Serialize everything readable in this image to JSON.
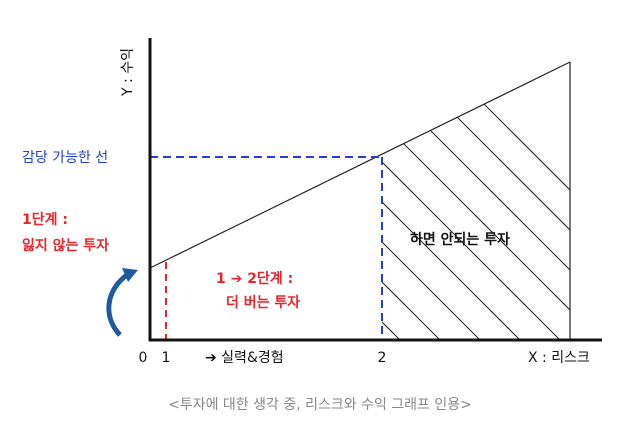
{
  "axes": {
    "y_label": "Y : 수익",
    "x_label": "X : 리스크",
    "origin": "0",
    "mark_1": "1",
    "mark_2": "2",
    "x_progress": "➔ 실력&경험"
  },
  "annotations": {
    "affordable_line": "감당 가능한 선",
    "stage1_title": "1단계 :",
    "stage1_desc": "잃지 않는 투자",
    "stage2_title": "1 ➔ 2단계 :",
    "stage2_desc": "더 버는 투자",
    "forbidden": "하면 안되는 투자"
  },
  "caption": "<투자에 대한 생각 중, 리스크와 수익 그래프 인용>"
}
